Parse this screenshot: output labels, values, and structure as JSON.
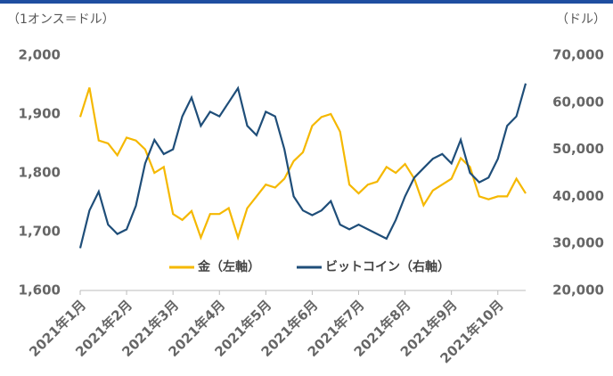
{
  "chart_data": {
    "type": "line",
    "y_label": "（1オンス＝ドル）",
    "y2_label": "（ドル）",
    "categories": [
      "2021年1月",
      null,
      null,
      null,
      null,
      "2021年2月",
      null,
      null,
      null,
      null,
      "2021年3月",
      null,
      null,
      null,
      null,
      "2021年4月",
      null,
      null,
      null,
      null,
      "2021年5月",
      null,
      null,
      null,
      null,
      "2021年6月",
      null,
      null,
      null,
      null,
      "2021年7月",
      null,
      null,
      null,
      null,
      "2021年8月",
      null,
      null,
      null,
      null,
      "2021年9月",
      null,
      null,
      null,
      null,
      "2021年10月",
      null,
      null,
      null
    ],
    "series": [
      {
        "name": "金（左軸）",
        "color": "#f5b800",
        "axis": "y",
        "values": [
          1895,
          1945,
          1855,
          1850,
          1830,
          1860,
          1855,
          1840,
          1800,
          1810,
          1730,
          1720,
          1735,
          1690,
          1730,
          1730,
          1740,
          1690,
          1740,
          1760,
          1780,
          1775,
          1790,
          1820,
          1835,
          1880,
          1895,
          1900,
          1870,
          1780,
          1765,
          1780,
          1785,
          1810,
          1800,
          1815,
          1790,
          1745,
          1770,
          1780,
          1790,
          1825,
          1810,
          1760,
          1755,
          1760,
          1760,
          1790,
          1765
        ]
      },
      {
        "name": "ビットコイン（右軸）",
        "color": "#1f4e79",
        "axis": "y2",
        "values": [
          29000,
          37000,
          41000,
          34000,
          32000,
          33000,
          38000,
          47000,
          52000,
          49000,
          50000,
          57000,
          61000,
          55000,
          58000,
          57000,
          60000,
          63000,
          55000,
          53000,
          58000,
          57000,
          50000,
          40000,
          37000,
          36000,
          37000,
          39000,
          34000,
          33000,
          34000,
          33000,
          32000,
          31000,
          35000,
          40000,
          44000,
          46000,
          48000,
          49000,
          47000,
          52000,
          45000,
          43000,
          44000,
          48000,
          55000,
          57000,
          64000
        ]
      }
    ],
    "ylim": [
      1600,
      2000
    ],
    "yticks": [
      {
        "value": 1600,
        "label": "1,600"
      },
      {
        "value": 1700,
        "label": "1,700"
      },
      {
        "value": 1800,
        "label": "1,800"
      },
      {
        "value": 1900,
        "label": "1,900"
      },
      {
        "value": 2000,
        "label": "2,000"
      }
    ],
    "y2lim": [
      20000,
      70000
    ],
    "y2ticks": [
      {
        "value": 20000,
        "label": "20,000"
      },
      {
        "value": 30000,
        "label": "30,000"
      },
      {
        "value": 40000,
        "label": "40,000"
      },
      {
        "value": 50000,
        "label": "50,000"
      },
      {
        "value": 60000,
        "label": "60,000"
      },
      {
        "value": 70000,
        "label": "70,000"
      }
    ],
    "legend": "bottom"
  }
}
